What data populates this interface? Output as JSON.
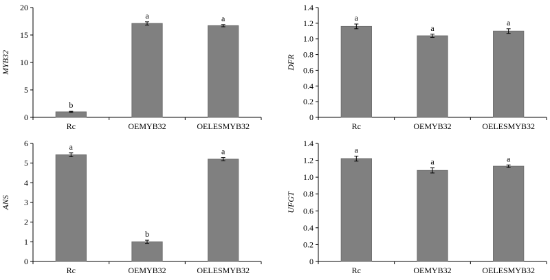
{
  "chart_data": [
    {
      "type": "bar",
      "ylabel": "MYB32",
      "categories": [
        "Rc",
        "OEMYB32",
        "OELESMYB32"
      ],
      "values": [
        1.0,
        17.1,
        16.7
      ],
      "errors": [
        0.1,
        0.3,
        0.2
      ],
      "significance": [
        "b",
        "a",
        "a"
      ],
      "ylim": [
        0,
        20
      ],
      "yticks": [
        "0",
        "5",
        "10",
        "15",
        "20"
      ],
      "grid": false,
      "bar_color": "#808080"
    },
    {
      "type": "bar",
      "ylabel": "DFR",
      "categories": [
        "Rc",
        "OEMYB32",
        "OELESMYB32"
      ],
      "values": [
        1.16,
        1.04,
        1.1
      ],
      "errors": [
        0.03,
        0.02,
        0.03
      ],
      "significance": [
        "a",
        "a",
        "a"
      ],
      "ylim": [
        0,
        1.4
      ],
      "yticks": [
        "0",
        "0.2",
        "0.4",
        "0.6",
        "0.8",
        "1.0",
        "1.2",
        "1.4"
      ],
      "grid": false,
      "bar_color": "#808080"
    },
    {
      "type": "bar",
      "ylabel": "ANS",
      "categories": [
        "Rc",
        "OEMYB32",
        "OELESMYB32"
      ],
      "values": [
        5.42,
        1.0,
        5.2
      ],
      "errors": [
        0.1,
        0.08,
        0.08
      ],
      "significance": [
        "a",
        "b",
        "a"
      ],
      "ylim": [
        0,
        6
      ],
      "yticks": [
        "0",
        "1",
        "2",
        "3",
        "4",
        "5",
        "6"
      ],
      "grid": false,
      "bar_color": "#808080"
    },
    {
      "type": "bar",
      "ylabel": "UFGT",
      "categories": [
        "Rc",
        "OEMYB32",
        "OELESMYB32"
      ],
      "values": [
        1.22,
        1.08,
        1.13
      ],
      "errors": [
        0.03,
        0.03,
        0.015
      ],
      "significance": [
        "a",
        "a",
        "a"
      ],
      "ylim": [
        0,
        1.4
      ],
      "yticks": [
        "0",
        "0.2",
        "0.4",
        "0.6",
        "0.8",
        "1.0",
        "1.2",
        "1.4"
      ],
      "grid": false,
      "bar_color": "#808080"
    }
  ]
}
